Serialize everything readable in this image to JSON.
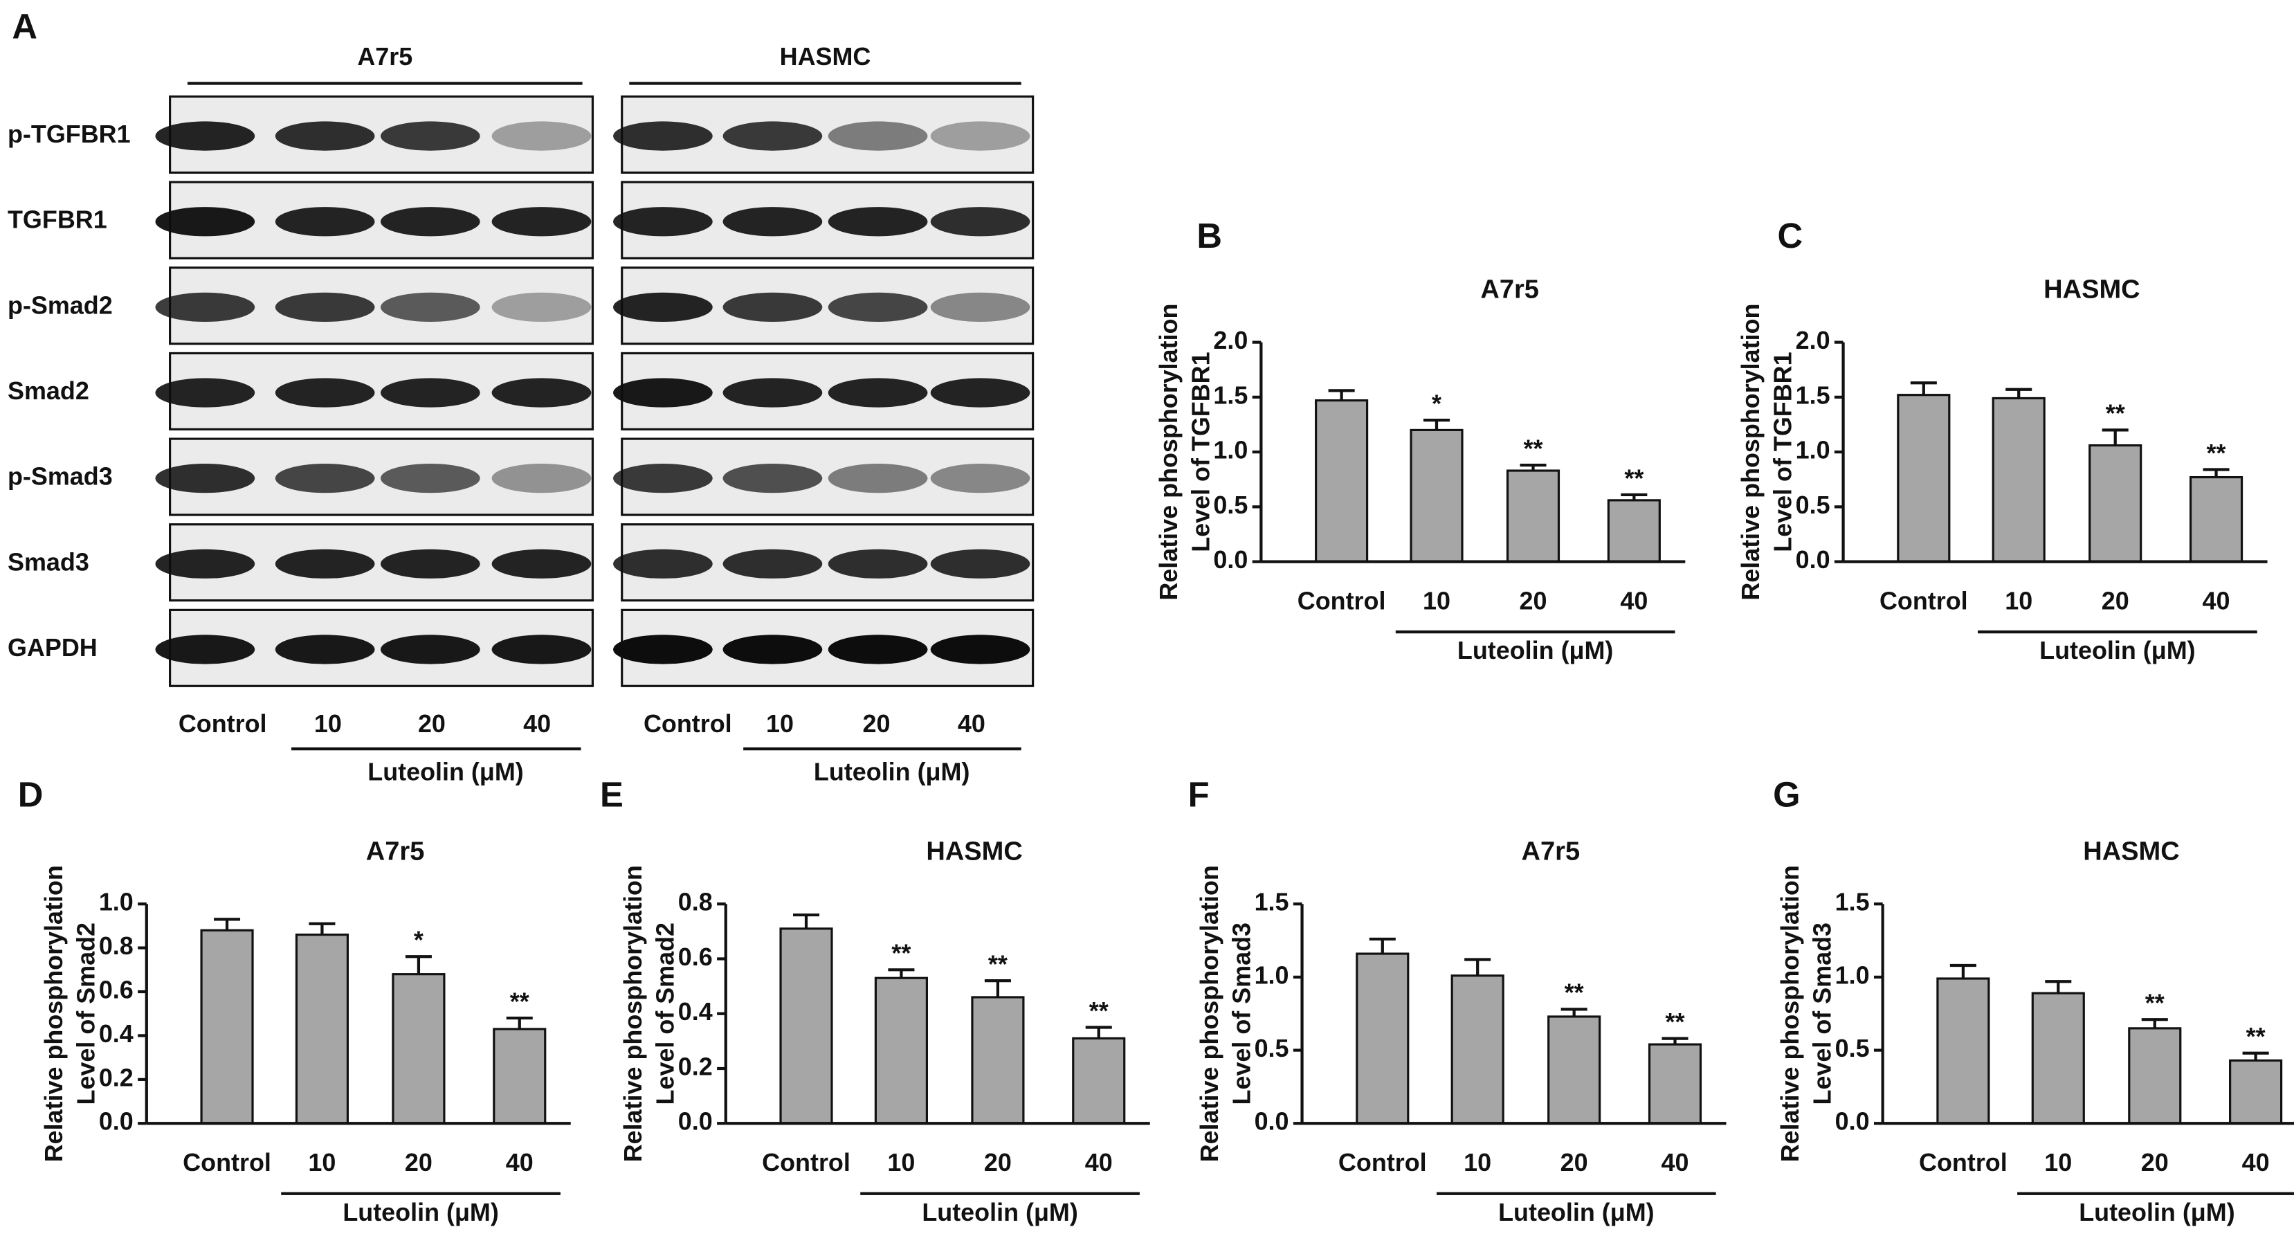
{
  "blot_panel": {
    "panel_label": "A",
    "cell_lines": [
      "A7r5",
      "HASMC"
    ],
    "proteins": [
      "p-TGFBR1",
      "TGFBR1",
      "p-Smad2",
      "Smad2",
      "p-Smad3",
      "Smad3",
      "GAPDH"
    ],
    "lanes": [
      "Control",
      "10",
      "20",
      "40"
    ],
    "treatment": "Luteolin (μM)"
  },
  "chart_data": [
    {
      "type": "bar",
      "panel_label": "B",
      "title": "A7r5",
      "ylabel": [
        "Relative phosphorylation",
        "Level of TGFBR1"
      ],
      "xlabel": "Luteolin (μM)",
      "categories": [
        "Control",
        "10",
        "20",
        "40"
      ],
      "values": [
        1.47,
        1.2,
        0.83,
        0.56
      ],
      "errors": [
        0.09,
        0.09,
        0.05,
        0.05
      ],
      "annotations": [
        null,
        "*",
        "**",
        "**"
      ],
      "color": "#a6a6a6",
      "ylim": [
        0,
        2
      ],
      "yticks": [
        {
          "value": 0,
          "label": "0.0"
        },
        0.5,
        {
          "value": 1,
          "label": "1.0"
        },
        1.5,
        {
          "value": 2,
          "label": "2.0"
        }
      ]
    },
    {
      "type": "bar",
      "panel_label": "C",
      "title": "HASMC",
      "ylabel": [
        "Relative phosphorylation",
        "Level of TGFBR1"
      ],
      "xlabel": "Luteolin (μM)",
      "categories": [
        "Control",
        "10",
        "20",
        "40"
      ],
      "values": [
        1.52,
        1.49,
        1.06,
        0.77
      ],
      "errors": [
        0.11,
        0.08,
        0.14,
        0.07
      ],
      "annotations": [
        null,
        null,
        "**",
        "**"
      ],
      "color": "#a6a6a6",
      "ylim": [
        0,
        2
      ],
      "yticks": [
        {
          "value": 0,
          "label": "0.0"
        },
        0.5,
        {
          "value": 1,
          "label": "1.0"
        },
        1.5,
        {
          "value": 2,
          "label": "2.0"
        }
      ]
    },
    {
      "type": "bar",
      "panel_label": "D",
      "title": "A7r5",
      "ylabel": [
        "Relative phosphorylation",
        "Level of Smad2"
      ],
      "xlabel": "Luteolin (μM)",
      "categories": [
        "Control",
        "10",
        "20",
        "40"
      ],
      "values": [
        0.88,
        0.86,
        0.68,
        0.43
      ],
      "errors": [
        0.05,
        0.05,
        0.08,
        0.05
      ],
      "annotations": [
        null,
        null,
        "*",
        "**"
      ],
      "color": "#a6a6a6",
      "ylim": [
        0,
        1
      ],
      "yticks": [
        {
          "value": 0,
          "label": "0.0"
        },
        0.2,
        0.4,
        0.6,
        0.8,
        {
          "value": 1,
          "label": "1.0"
        }
      ]
    },
    {
      "type": "bar",
      "panel_label": "E",
      "title": "HASMC",
      "ylabel": [
        "Relative phosphorylation",
        "Level of Smad2"
      ],
      "xlabel": "Luteolin (μM)",
      "categories": [
        "Control",
        "10",
        "20",
        "40"
      ],
      "values": [
        0.71,
        0.53,
        0.46,
        0.31
      ],
      "errors": [
        0.05,
        0.03,
        0.06,
        0.04
      ],
      "annotations": [
        null,
        "**",
        "**",
        "**"
      ],
      "color": "#a6a6a6",
      "ylim": [
        0,
        0.8
      ],
      "yticks": [
        {
          "value": 0,
          "label": "0.0"
        },
        0.2,
        0.4,
        0.6,
        0.8
      ]
    },
    {
      "type": "bar",
      "panel_label": "F",
      "title": "A7r5",
      "ylabel": [
        "Relative phosphorylation",
        "Level of Smad3"
      ],
      "xlabel": "Luteolin (μM)",
      "categories": [
        "Control",
        "10",
        "20",
        "40"
      ],
      "values": [
        1.16,
        1.01,
        0.73,
        0.54
      ],
      "errors": [
        0.1,
        0.11,
        0.05,
        0.04
      ],
      "annotations": [
        null,
        null,
        "**",
        "**"
      ],
      "color": "#a6a6a6",
      "ylim": [
        0,
        1.5
      ],
      "yticks": [
        {
          "value": 0,
          "label": "0.0"
        },
        0.5,
        {
          "value": 1,
          "label": "1.0"
        },
        1.5
      ]
    },
    {
      "type": "bar",
      "panel_label": "G",
      "title": "HASMC",
      "ylabel": [
        "Relative phosphorylation",
        "Level of Smad3"
      ],
      "xlabel": "Luteolin (μM)",
      "categories": [
        "Control",
        "10",
        "20",
        "40"
      ],
      "values": [
        0.99,
        0.89,
        0.65,
        0.43
      ],
      "errors": [
        0.09,
        0.08,
        0.06,
        0.05
      ],
      "annotations": [
        null,
        null,
        "**",
        "**"
      ],
      "color": "#a6a6a6",
      "ylim": [
        0,
        1.5
      ],
      "yticks": [
        {
          "value": 0,
          "label": "0.0"
        },
        0.5,
        {
          "value": 1,
          "label": "1.0"
        },
        1.5
      ]
    }
  ]
}
